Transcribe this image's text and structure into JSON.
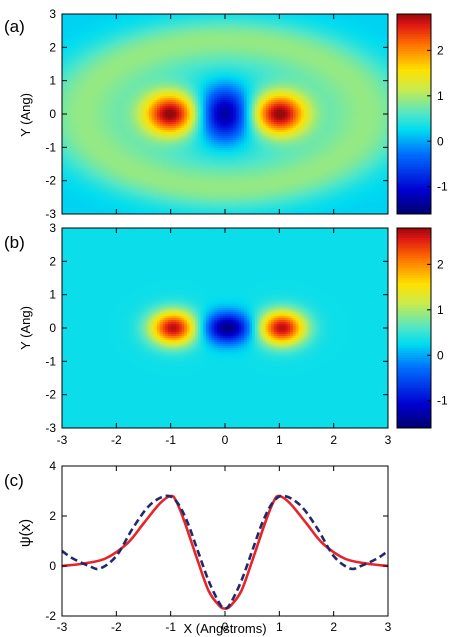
{
  "chart_data": [
    {
      "type": "heatmap",
      "panel_label": "(a)",
      "xlabel": "",
      "ylabel": "Y (Ang)",
      "xlim": [
        -3,
        3
      ],
      "ylim": [
        -3,
        3
      ],
      "yticks": [
        "3",
        "2",
        "1",
        "0",
        "-1",
        "-2",
        "-3"
      ],
      "colorbar": {
        "range": [
          -1.6,
          2.8
        ],
        "ticks": [
          "2",
          "1",
          "0",
          "-1"
        ]
      },
      "features": [
        {
          "x": -1.0,
          "y": 0.0,
          "value": 2.7,
          "sx": 0.35,
          "sy": 0.45
        },
        {
          "x": 0.0,
          "y": 0.0,
          "value": -1.5,
          "sx": 0.32,
          "sy": 0.55
        },
        {
          "x": 1.0,
          "y": 0.0,
          "value": 2.7,
          "sx": 0.35,
          "sy": 0.45
        }
      ],
      "background": {
        "value": 0.2,
        "halo_value": 0.9,
        "halo_rx": 2.6,
        "halo_ry": 2.2
      }
    },
    {
      "type": "heatmap",
      "panel_label": "(b)",
      "xlabel": "",
      "ylabel": "Y (Ang)",
      "xlim": [
        -3,
        3
      ],
      "ylim": [
        -3,
        3
      ],
      "xticks": [
        "-3",
        "-2",
        "-1",
        "0",
        "1",
        "2",
        "3"
      ],
      "yticks": [
        "3",
        "2",
        "1",
        "0",
        "-1",
        "-2",
        "-3"
      ],
      "colorbar": {
        "range": [
          -1.6,
          2.8
        ],
        "ticks": [
          "2",
          "1",
          "0",
          "-1"
        ]
      },
      "features": [
        {
          "x": -0.95,
          "y": 0.0,
          "value": 2.7,
          "sx": 0.3,
          "sy": 0.36
        },
        {
          "x": 0.05,
          "y": 0.0,
          "value": -1.5,
          "sx": 0.3,
          "sy": 0.32
        },
        {
          "x": 1.05,
          "y": 0.0,
          "value": 2.7,
          "sx": 0.3,
          "sy": 0.36
        }
      ],
      "background": {
        "value": 0.3
      }
    },
    {
      "type": "line",
      "panel_label": "(c)",
      "xlabel": "X (Angstroms)",
      "ylabel": "ψ(x)",
      "xlim": [
        -3,
        3
      ],
      "ylim": [
        -2,
        4
      ],
      "xticks": [
        "-3",
        "-2",
        "-1",
        "0",
        "1",
        "2",
        "3"
      ],
      "yticks": [
        "4",
        "2",
        "0",
        "-2"
      ],
      "series": [
        {
          "style": "solid",
          "color": "#e8242b",
          "x": [
            -3,
            -2.6,
            -2.2,
            -1.8,
            -1.5,
            -1.2,
            -1.0,
            -0.9,
            -0.75,
            -0.5,
            -0.3,
            -0.1,
            0,
            0.1,
            0.3,
            0.5,
            0.75,
            0.9,
            1.0,
            1.2,
            1.5,
            1.8,
            2.2,
            2.6,
            3
          ],
          "y": [
            0.0,
            0.1,
            0.3,
            0.9,
            1.7,
            2.5,
            2.8,
            2.6,
            1.8,
            0.2,
            -1.0,
            -1.6,
            -1.7,
            -1.6,
            -1.0,
            0.2,
            1.8,
            2.6,
            2.8,
            2.5,
            1.7,
            0.9,
            0.3,
            0.1,
            0.0
          ]
        },
        {
          "style": "dashed",
          "color": "#1f2a6b",
          "x": [
            -3,
            -2.8,
            -2.5,
            -2.3,
            -2.0,
            -1.7,
            -1.4,
            -1.1,
            -0.9,
            -0.7,
            -0.5,
            -0.3,
            -0.1,
            0,
            0.1,
            0.3,
            0.5,
            0.7,
            0.9,
            1.1,
            1.4,
            1.7,
            2.0,
            2.3,
            2.5,
            2.8,
            3
          ],
          "y": [
            0.6,
            0.3,
            0.0,
            -0.1,
            0.4,
            1.5,
            2.4,
            2.8,
            2.6,
            1.8,
            0.6,
            -0.6,
            -1.5,
            -1.7,
            -1.5,
            -0.6,
            0.6,
            1.8,
            2.6,
            2.8,
            2.4,
            1.5,
            0.4,
            -0.1,
            0.0,
            0.3,
            0.6
          ]
        }
      ]
    }
  ]
}
